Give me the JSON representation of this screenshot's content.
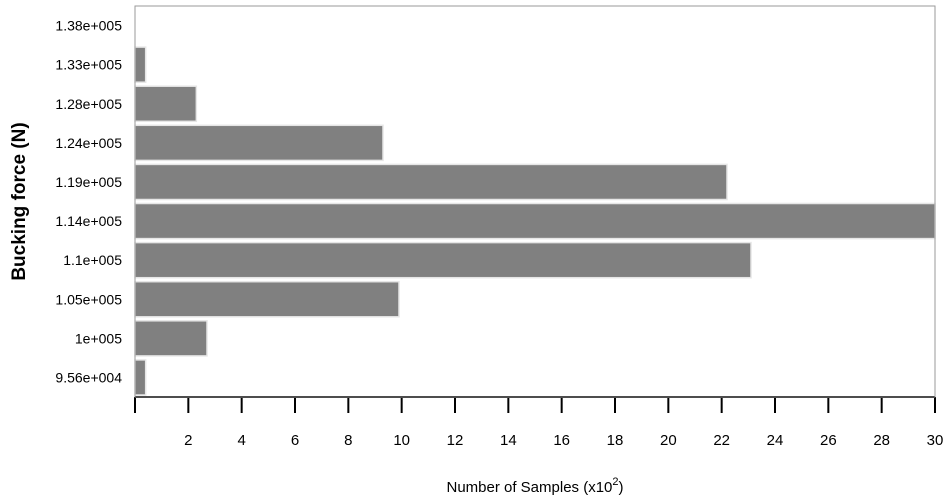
{
  "chart_data": {
    "type": "bar",
    "orientation": "horizontal",
    "categories": [
      "1.38e+005",
      "1.33e+005",
      "1.28e+005",
      "1.24e+005",
      "1.19e+005",
      "1.14e+005",
      "1.1e+005",
      "1.05e+005",
      "1e+005",
      "9.56e+004"
    ],
    "values": [
      0,
      0.4,
      2.3,
      9.3,
      22.2,
      30,
      23.1,
      9.9,
      2.7,
      0.4
    ],
    "xlabel_main": "Number of Samples (x10",
    "xlabel_sup": "2",
    "xlabel_end": ")",
    "ylabel": "Bucking force (N)",
    "xlim": [
      0,
      30
    ],
    "xticks": [
      "2",
      "4",
      "6",
      "8",
      "10",
      "12",
      "14",
      "16",
      "18",
      "20",
      "22",
      "24",
      "26",
      "28",
      "30"
    ],
    "bar_color": "#808080",
    "grid": false
  }
}
